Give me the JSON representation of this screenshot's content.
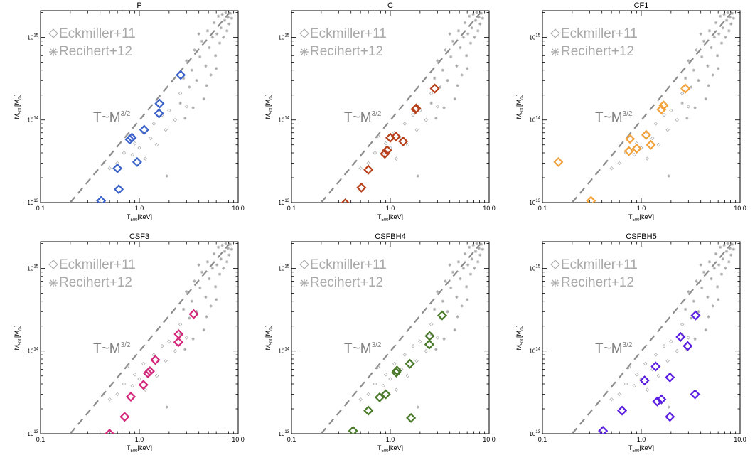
{
  "chart_data": {
    "type": "scatter",
    "x_scale": "log",
    "y_scale": "log",
    "xlim": [
      0.1,
      10.0
    ],
    "ylim": [
      10000000000000.0,
      2100000000000000.0
    ],
    "x_tick_values": [
      0.1,
      1.0,
      10.0
    ],
    "x_tick_labels": [
      "0.1",
      "1.0",
      "10.0"
    ],
    "y_tick_values": [
      10000000000000.0,
      100000000000000.0,
      1000000000000000.0
    ],
    "xlabel": {
      "main": "T",
      "sub": "500",
      "unit": "[keV]"
    },
    "ylabel": {
      "main": "M",
      "sub": "500",
      "unit": "[M",
      "unit_sub": "⊙",
      "unit_end": "]"
    },
    "relation_label": {
      "base": "T~M",
      "exp": "3/2"
    },
    "legend": [
      {
        "label": "Eckmiller+11",
        "marker": "diamond-open"
      },
      {
        "label": "Recihert+12",
        "marker": "asterisk"
      }
    ],
    "reference_line": {
      "style": "dashed",
      "color": "#8c8c8c",
      "points": [
        {
          "T": 0.2,
          "M": 10000000000000.0
        },
        {
          "T": 8.5,
          "M": 2100000000000000.0
        }
      ]
    },
    "eckmiller_points": [
      {
        "T": 0.5,
        "M": 26000000000000.0
      },
      {
        "T": 0.6,
        "M": 30000000000000.0
      },
      {
        "T": 0.7,
        "M": 40000000000000.0
      },
      {
        "T": 0.75,
        "M": 64000000000000.0
      },
      {
        "T": 0.85,
        "M": 38000000000000.0
      },
      {
        "T": 0.9,
        "M": 52000000000000.0
      },
      {
        "T": 1.0,
        "M": 46000000000000.0
      },
      {
        "T": 1.1,
        "M": 70000000000000.0
      },
      {
        "T": 1.15,
        "M": 34000000000000.0
      },
      {
        "T": 1.3,
        "M": 60000000000000.0
      },
      {
        "T": 1.4,
        "M": 90000000000000.0
      },
      {
        "T": 1.5,
        "M": 50000000000000.0
      },
      {
        "T": 1.7,
        "M": 115000000000000.0
      },
      {
        "T": 1.85,
        "M": 76000000000000.0
      },
      {
        "T": 2.0,
        "M": 130000000000000.0
      },
      {
        "T": 2.3,
        "M": 100000000000000.0
      },
      {
        "T": 2.6,
        "M": 210000000000000.0
      },
      {
        "T": 3.0,
        "M": 145000000000000.0
      }
    ],
    "reichert_points": [
      {
        "T": 1.9,
        "M": 21000000000000.0
      },
      {
        "T": 2.6,
        "M": 160000000000000.0
      },
      {
        "T": 2.9,
        "M": 105000000000000.0
      },
      {
        "T": 3.2,
        "M": 250000000000000.0
      },
      {
        "T": 3.4,
        "M": 400000000000000.0
      },
      {
        "T": 3.6,
        "M": 700000000000000.0
      },
      {
        "T": 3.8,
        "M": 300000000000000.0
      },
      {
        "T": 4.1,
        "M": 580000000000000.0
      },
      {
        "T": 4.3,
        "M": 900000000000000.0
      },
      {
        "T": 4.5,
        "M": 180000000000000.0
      },
      {
        "T": 4.7,
        "M": 450000000000000.0
      },
      {
        "T": 4.9,
        "M": 1200000000000000.0
      },
      {
        "T": 5.1,
        "M": 750000000000000.0
      },
      {
        "T": 5.3,
        "M": 350000000000000.0
      },
      {
        "T": 5.5,
        "M": 1000000000000000.0
      },
      {
        "T": 5.7,
        "M": 1500000000000000.0
      },
      {
        "T": 5.9,
        "M": 600000000000000.0
      },
      {
        "T": 6.1,
        "M": 1100000000000000.0
      },
      {
        "T": 6.3,
        "M": 1800000000000000.0
      },
      {
        "T": 6.5,
        "M": 850000000000000.0
      },
      {
        "T": 6.7,
        "M": 1300000000000000.0
      },
      {
        "T": 6.9,
        "M": 1900000000000000.0
      },
      {
        "T": 7.1,
        "M": 1000000000000000.0
      },
      {
        "T": 7.3,
        "M": 1600000000000000.0
      },
      {
        "T": 7.5,
        "M": 2000000000000000.0
      },
      {
        "T": 7.7,
        "M": 1200000000000000.0
      },
      {
        "T": 7.9,
        "M": 1750000000000000.0
      },
      {
        "T": 8.1,
        "M": 1450000000000000.0
      },
      {
        "T": 8.3,
        "M": 1950000000000000.0
      },
      {
        "T": 8.6,
        "M": 1700000000000000.0
      },
      {
        "T": 4.0,
        "M": 1100000000000000.0
      },
      {
        "T": 3.0,
        "M": 520000000000000.0
      },
      {
        "T": 2.8,
        "M": 320000000000000.0
      },
      {
        "T": 3.5,
        "M": 140000000000000.0
      },
      {
        "T": 4.8,
        "M": 260000000000000.0
      },
      {
        "T": 6.0,
        "M": 420000000000000.0
      }
    ],
    "panels": [
      {
        "title": "P",
        "color": "#3a62c9",
        "points": [
          {
            "T": 0.41,
            "M": 10500000000000.0
          },
          {
            "T": 0.62,
            "M": 14500000000000.0
          },
          {
            "T": 0.6,
            "M": 26000000000000.0
          },
          {
            "T": 0.95,
            "M": 31000000000000.0
          },
          {
            "T": 0.8,
            "M": 58000000000000.0
          },
          {
            "T": 0.84,
            "M": 61000000000000.0
          },
          {
            "T": 1.12,
            "M": 76000000000000.0
          },
          {
            "T": 1.58,
            "M": 120000000000000.0
          },
          {
            "T": 1.6,
            "M": 158000000000000.0
          },
          {
            "T": 2.62,
            "M": 350000000000000.0
          }
        ]
      },
      {
        "title": "C",
        "color": "#b8401a",
        "points": [
          {
            "T": 0.35,
            "M": 9800000000000.0
          },
          {
            "T": 0.51,
            "M": 15200000000000.0
          },
          {
            "T": 0.6,
            "M": 25000000000000.0
          },
          {
            "T": 0.88,
            "M": 39000000000000.0
          },
          {
            "T": 0.93,
            "M": 43000000000000.0
          },
          {
            "T": 1.0,
            "M": 61000000000000.0
          },
          {
            "T": 1.14,
            "M": 63000000000000.0
          },
          {
            "T": 1.35,
            "M": 55000000000000.0
          },
          {
            "T": 1.8,
            "M": 135000000000000.0
          },
          {
            "T": 1.83,
            "M": 138000000000000.0
          },
          {
            "T": 2.82,
            "M": 240000000000000.0
          }
        ]
      },
      {
        "title": "CF1",
        "color": "#f2a23c",
        "points": [
          {
            "T": 0.145,
            "M": 31000000000000.0
          },
          {
            "T": 0.31,
            "M": 10500000000000.0
          },
          {
            "T": 0.75,
            "M": 42000000000000.0
          },
          {
            "T": 0.77,
            "M": 59000000000000.0
          },
          {
            "T": 0.9,
            "M": 45000000000000.0
          },
          {
            "T": 1.12,
            "M": 66000000000000.0
          },
          {
            "T": 1.25,
            "M": 50000000000000.0
          },
          {
            "T": 1.6,
            "M": 134000000000000.0
          },
          {
            "T": 1.68,
            "M": 150000000000000.0
          },
          {
            "T": 2.8,
            "M": 240000000000000.0
          }
        ]
      },
      {
        "title": "CSF3",
        "color": "#d4267a",
        "points": [
          {
            "T": 0.5,
            "M": 10000000000000.0
          },
          {
            "T": 0.71,
            "M": 16000000000000.0
          },
          {
            "T": 0.82,
            "M": 28000000000000.0
          },
          {
            "T": 1.1,
            "M": 39000000000000.0
          },
          {
            "T": 1.22,
            "M": 54000000000000.0
          },
          {
            "T": 1.28,
            "M": 57000000000000.0
          },
          {
            "T": 1.45,
            "M": 78000000000000.0
          },
          {
            "T": 2.48,
            "M": 128000000000000.0
          },
          {
            "T": 2.5,
            "M": 160000000000000.0
          },
          {
            "T": 3.55,
            "M": 280000000000000.0
          }
        ]
      },
      {
        "title": "CSFBH4",
        "color": "#4a7a2a",
        "points": [
          {
            "T": 0.42,
            "M": 10800000000000.0
          },
          {
            "T": 0.6,
            "M": 19000000000000.0
          },
          {
            "T": 0.78,
            "M": 27500000000000.0
          },
          {
            "T": 0.9,
            "M": 30000000000000.0
          },
          {
            "T": 1.15,
            "M": 55000000000000.0
          },
          {
            "T": 1.17,
            "M": 58000000000000.0
          },
          {
            "T": 1.58,
            "M": 70000000000000.0
          },
          {
            "T": 1.62,
            "M": 15500000000000.0
          },
          {
            "T": 2.48,
            "M": 120000000000000.0
          },
          {
            "T": 2.5,
            "M": 152000000000000.0
          },
          {
            "T": 3.35,
            "M": 270000000000000.0
          }
        ]
      },
      {
        "title": "CSFBH5",
        "color": "#5a1fe0",
        "points": [
          {
            "T": 0.41,
            "M": 10800000000000.0
          },
          {
            "T": 0.64,
            "M": 19000000000000.0
          },
          {
            "T": 1.08,
            "M": 44000000000000.0
          },
          {
            "T": 1.4,
            "M": 65000000000000.0
          },
          {
            "T": 1.45,
            "M": 24500000000000.0
          },
          {
            "T": 1.6,
            "M": 26000000000000.0
          },
          {
            "T": 1.95,
            "M": 16000000000000.0
          },
          {
            "T": 1.95,
            "M": 48000000000000.0
          },
          {
            "T": 2.5,
            "M": 148000000000000.0
          },
          {
            "T": 2.95,
            "M": 115000000000000.0
          },
          {
            "T": 3.5,
            "M": 30000000000000.0
          },
          {
            "T": 3.55,
            "M": 270000000000000.0
          }
        ]
      }
    ]
  }
}
